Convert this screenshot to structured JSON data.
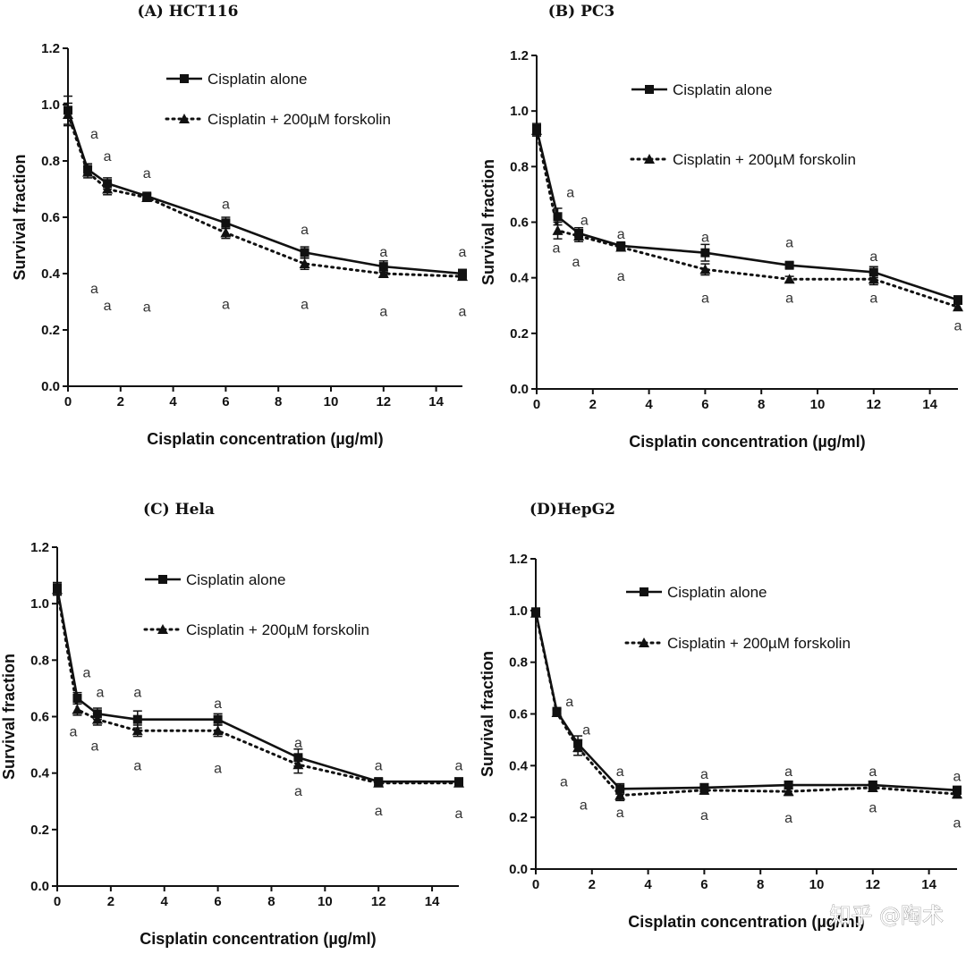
{
  "watermark": "知乎 @陶术",
  "chart_data": [
    {
      "type": "line",
      "title": "(A) HCT116",
      "xlabel": "Cisplatin concentration (µg/ml)",
      "ylabel": "Survival fraction",
      "xlim": [
        0,
        15
      ],
      "ylim": [
        0,
        1.2
      ],
      "xticks": [
        0,
        2,
        4,
        6,
        8,
        10,
        12,
        14
      ],
      "yticks": [
        0.0,
        0.2,
        0.4,
        0.6,
        0.8,
        1.0,
        1.2
      ],
      "x": [
        0,
        0.75,
        1.5,
        3,
        6,
        9,
        12,
        15
      ],
      "series": [
        {
          "name": "Cisplatin alone",
          "marker": "square",
          "style": "solid",
          "values": [
            0.98,
            0.77,
            0.72,
            0.675,
            0.58,
            0.475,
            0.425,
            0.4
          ],
          "err": [
            0.05,
            0.02,
            0.02,
            0.01,
            0.02,
            0.02,
            0.02,
            0.015
          ]
        },
        {
          "name": "Cisplatin + 200µM forskolin",
          "marker": "triangle",
          "style": "dotted",
          "values": [
            0.965,
            0.76,
            0.7,
            0.67,
            0.545,
            0.435,
            0.4,
            0.39
          ],
          "err": [
            0.04,
            0.02,
            0.02,
            0.01,
            0.02,
            0.02,
            0.01,
            0.01
          ]
        }
      ],
      "annotations": [
        {
          "x": 1.0,
          "y": 0.88,
          "text": "a"
        },
        {
          "x": 1.5,
          "y": 0.8,
          "text": "a"
        },
        {
          "x": 3,
          "y": 0.74,
          "text": "a"
        },
        {
          "x": 6,
          "y": 0.63,
          "text": "a"
        },
        {
          "x": 9,
          "y": 0.54,
          "text": "a"
        },
        {
          "x": 12,
          "y": 0.46,
          "text": "a"
        },
        {
          "x": 15,
          "y": 0.46,
          "text": "a"
        },
        {
          "x": 1.0,
          "y": 0.33,
          "text": "a"
        },
        {
          "x": 1.5,
          "y": 0.27,
          "text": "a"
        },
        {
          "x": 3,
          "y": 0.265,
          "text": "a"
        },
        {
          "x": 6,
          "y": 0.275,
          "text": "a"
        },
        {
          "x": 9,
          "y": 0.275,
          "text": "a"
        },
        {
          "x": 12,
          "y": 0.25,
          "text": "a"
        },
        {
          "x": 15,
          "y": 0.25,
          "text": "a"
        }
      ]
    },
    {
      "type": "line",
      "title": "(B) PC3",
      "xlabel": "Cisplatin concentration (µg/ml)",
      "ylabel": "Survival fraction",
      "xlim": [
        0,
        15
      ],
      "ylim": [
        0,
        1.2
      ],
      "xticks": [
        0,
        2,
        4,
        6,
        8,
        10,
        12,
        14
      ],
      "yticks": [
        0.0,
        0.2,
        0.4,
        0.6,
        0.8,
        1.0,
        1.2
      ],
      "x": [
        0,
        0.75,
        1.5,
        3,
        6,
        9,
        12,
        15
      ],
      "series": [
        {
          "name": "Cisplatin alone",
          "marker": "square",
          "style": "solid",
          "values": [
            0.935,
            0.62,
            0.56,
            0.515,
            0.49,
            0.445,
            0.42,
            0.32
          ],
          "err": [
            0.02,
            0.03,
            0.02,
            0.01,
            0.03,
            0.01,
            0.02,
            0.015
          ]
        },
        {
          "name": "Cisplatin + 200µM forskolin",
          "marker": "triangle",
          "style": "dotted",
          "values": [
            0.93,
            0.57,
            0.55,
            0.51,
            0.43,
            0.395,
            0.395,
            0.295
          ],
          "err": [
            0.02,
            0.03,
            0.02,
            0.01,
            0.02,
            0.01,
            0.02,
            0.01
          ]
        }
      ],
      "annotations": [
        {
          "x": 1.2,
          "y": 0.69,
          "text": "a"
        },
        {
          "x": 1.7,
          "y": 0.59,
          "text": "a"
        },
        {
          "x": 3,
          "y": 0.54,
          "text": "a"
        },
        {
          "x": 6,
          "y": 0.53,
          "text": "a"
        },
        {
          "x": 9,
          "y": 0.51,
          "text": "a"
        },
        {
          "x": 12,
          "y": 0.46,
          "text": "a"
        },
        {
          "x": 0.7,
          "y": 0.49,
          "text": "a"
        },
        {
          "x": 1.4,
          "y": 0.44,
          "text": "a"
        },
        {
          "x": 3,
          "y": 0.39,
          "text": "a"
        },
        {
          "x": 6,
          "y": 0.31,
          "text": "a"
        },
        {
          "x": 9,
          "y": 0.31,
          "text": "a"
        },
        {
          "x": 12,
          "y": 0.31,
          "text": "a"
        },
        {
          "x": 15,
          "y": 0.21,
          "text": "a"
        }
      ]
    },
    {
      "type": "line",
      "title": "(C) Hela",
      "xlabel": "Cisplatin concentration (µg/ml)",
      "ylabel": "Survival fraction",
      "xlim": [
        0,
        15
      ],
      "ylim": [
        0,
        1.2
      ],
      "xticks": [
        0,
        2,
        4,
        6,
        8,
        10,
        12,
        14
      ],
      "yticks": [
        0.0,
        0.2,
        0.4,
        0.6,
        0.8,
        1.0,
        1.2
      ],
      "x": [
        0,
        0.75,
        1.5,
        3,
        6,
        9,
        12,
        15
      ],
      "series": [
        {
          "name": "Cisplatin alone",
          "marker": "square",
          "style": "solid",
          "values": [
            1.055,
            0.665,
            0.61,
            0.59,
            0.59,
            0.455,
            0.37,
            0.37
          ],
          "err": [
            0.02,
            0.02,
            0.02,
            0.03,
            0.02,
            0.03,
            0.01,
            0.01
          ]
        },
        {
          "name": "Cisplatin + 200µM forskolin",
          "marker": "triangle",
          "style": "dotted",
          "values": [
            1.05,
            0.625,
            0.59,
            0.55,
            0.55,
            0.43,
            0.365,
            0.365
          ],
          "err": [
            0.02,
            0.02,
            0.02,
            0.02,
            0.02,
            0.03,
            0.01,
            0.01
          ]
        }
      ],
      "annotations": [
        {
          "x": 1.1,
          "y": 0.74,
          "text": "a"
        },
        {
          "x": 1.6,
          "y": 0.67,
          "text": "a"
        },
        {
          "x": 3,
          "y": 0.67,
          "text": "a"
        },
        {
          "x": 6,
          "y": 0.63,
          "text": "a"
        },
        {
          "x": 9,
          "y": 0.49,
          "text": "a"
        },
        {
          "x": 12,
          "y": 0.41,
          "text": "a"
        },
        {
          "x": 15,
          "y": 0.41,
          "text": "a"
        },
        {
          "x": 0.6,
          "y": 0.53,
          "text": "a"
        },
        {
          "x": 1.4,
          "y": 0.48,
          "text": "a"
        },
        {
          "x": 3,
          "y": 0.41,
          "text": "a"
        },
        {
          "x": 6,
          "y": 0.4,
          "text": "a"
        },
        {
          "x": 9,
          "y": 0.32,
          "text": "a"
        },
        {
          "x": 12,
          "y": 0.25,
          "text": "a"
        },
        {
          "x": 15,
          "y": 0.24,
          "text": "a"
        }
      ]
    },
    {
      "type": "line",
      "title": "(D)HepG2",
      "xlabel": "Cisplatin concentration (µg/ml)",
      "ylabel": "Survival fraction",
      "xlim": [
        0,
        15
      ],
      "ylim": [
        0,
        1.2
      ],
      "xticks": [
        0,
        2,
        4,
        6,
        8,
        10,
        12,
        14
      ],
      "yticks": [
        0.0,
        0.2,
        0.4,
        0.6,
        0.8,
        1.0,
        1.2
      ],
      "x": [
        0,
        0.75,
        1.5,
        3,
        6,
        9,
        12,
        15
      ],
      "series": [
        {
          "name": "Cisplatin alone",
          "marker": "square",
          "style": "solid",
          "values": [
            0.995,
            0.61,
            0.485,
            0.31,
            0.315,
            0.325,
            0.325,
            0.305
          ],
          "err": [
            0.01,
            0.01,
            0.03,
            0.02,
            0.015,
            0.015,
            0.015,
            0.015
          ]
        },
        {
          "name": "Cisplatin + 200µM forskolin",
          "marker": "triangle",
          "style": "dotted",
          "values": [
            0.99,
            0.605,
            0.47,
            0.285,
            0.305,
            0.3,
            0.315,
            0.29
          ],
          "err": [
            0.01,
            0.01,
            0.03,
            0.02,
            0.015,
            0.015,
            0.015,
            0.015
          ]
        }
      ],
      "annotations": [
        {
          "x": 1.2,
          "y": 0.63,
          "text": "a"
        },
        {
          "x": 1.8,
          "y": 0.52,
          "text": "a"
        },
        {
          "x": 3,
          "y": 0.36,
          "text": "a"
        },
        {
          "x": 6,
          "y": 0.35,
          "text": "a"
        },
        {
          "x": 9,
          "y": 0.36,
          "text": "a"
        },
        {
          "x": 12,
          "y": 0.36,
          "text": "a"
        },
        {
          "x": 15,
          "y": 0.34,
          "text": "a"
        },
        {
          "x": 1.0,
          "y": 0.32,
          "text": "a"
        },
        {
          "x": 1.7,
          "y": 0.23,
          "text": "a"
        },
        {
          "x": 3,
          "y": 0.2,
          "text": "a"
        },
        {
          "x": 6,
          "y": 0.19,
          "text": "a"
        },
        {
          "x": 9,
          "y": 0.18,
          "text": "a"
        },
        {
          "x": 12,
          "y": 0.22,
          "text": "a"
        },
        {
          "x": 15,
          "y": 0.16,
          "text": "a"
        }
      ]
    }
  ]
}
